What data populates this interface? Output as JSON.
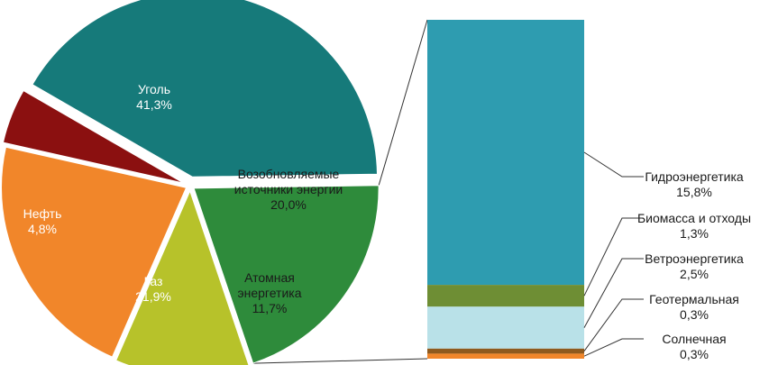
{
  "chart_data": [
    {
      "type": "pie",
      "categories": [
        "Уголь",
        "Возобновляемые источники энергии",
        "Атомная энергетика",
        "Газ",
        "Нефть"
      ],
      "values": [
        41.3,
        20.0,
        11.7,
        21.9,
        4.8
      ],
      "colors": [
        "#167a7a",
        "#2e8b3b",
        "#b7c22a",
        "#f1862a",
        "#8b1010"
      ],
      "exploded": true,
      "labels": [
        {
          "lines": [
            "Уголь",
            "41,3%"
          ]
        },
        {
          "lines": [
            "Возобновляемые",
            "источники энергии",
            "20,0%"
          ]
        },
        {
          "lines": [
            "Атомная",
            "энергетика",
            "11,7%"
          ]
        },
        {
          "lines": [
            "Газ",
            "21,9%"
          ]
        },
        {
          "lines": [
            "Нефть",
            "4,8%"
          ]
        }
      ]
    },
    {
      "type": "bar",
      "stacked": true,
      "breakdown_of": "Возобновляемые источники энергии",
      "categories": [
        "Гидроэнергетика",
        "Биомасса и отходы",
        "Ветроэнергетика",
        "Геотермальная",
        "Солнечная"
      ],
      "values": [
        15.8,
        1.3,
        2.5,
        0.3,
        0.3
      ],
      "colors": [
        "#2e9cb0",
        "#6e8e34",
        "#b9e1e8",
        "#8f5a1e",
        "#f1862a"
      ],
      "labels": [
        {
          "lines": [
            "Гидроэнергетика",
            "15,8%"
          ]
        },
        {
          "lines": [
            "Биомасса и отходы",
            "1,3%"
          ]
        },
        {
          "lines": [
            "Ветроэнергетика",
            "2,5%"
          ]
        },
        {
          "lines": [
            "Геотермальная",
            "0,3%"
          ]
        },
        {
          "lines": [
            "Солнечная",
            "0,3%"
          ]
        }
      ]
    }
  ]
}
